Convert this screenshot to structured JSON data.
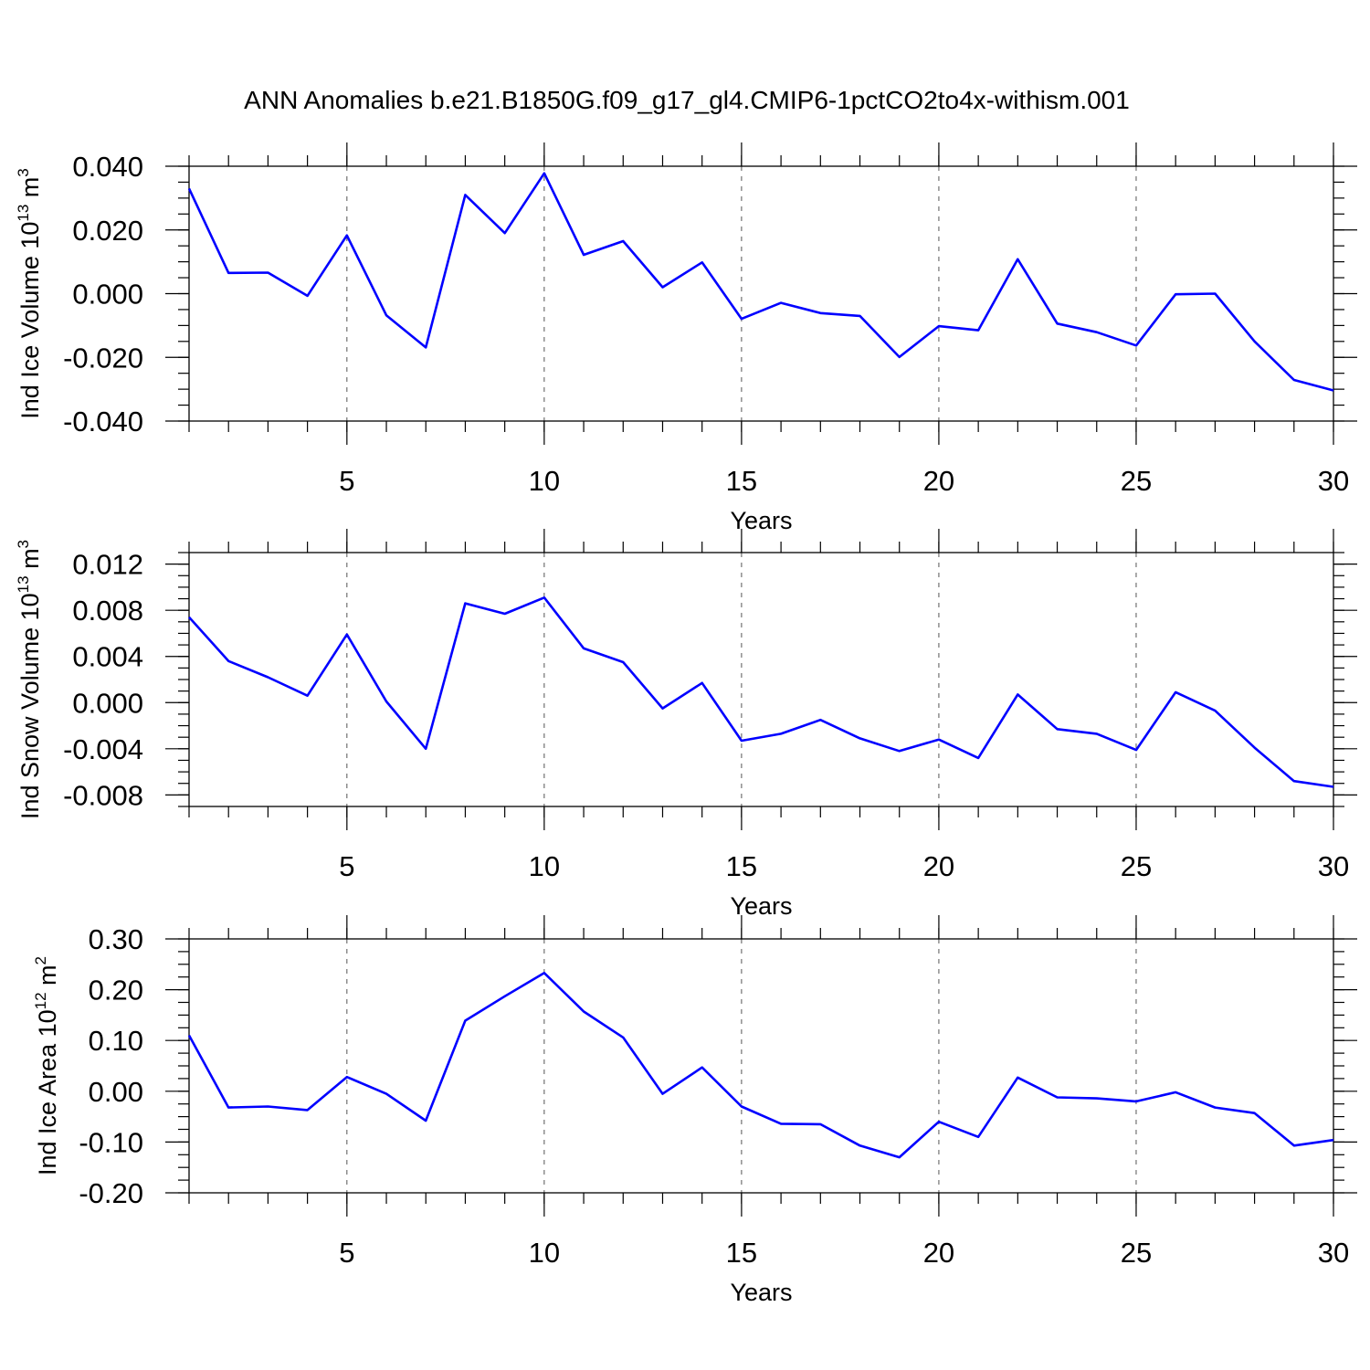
{
  "title": "ANN Anomalies b.e21.B1850G.f09_g17_gl4.CMIP6-1pctCO2to4x-withism.001",
  "line_color": "#0000ff",
  "chart_data": [
    {
      "type": "line",
      "ylabel_main": "Ind Ice Volume 10",
      "ylabel_exp": "13",
      "ylabel_unit": " m",
      "ylabel_unit_exp": "3",
      "xlabel": "Years",
      "xlim": [
        1,
        30
      ],
      "ylim": [
        -0.04,
        0.04
      ],
      "xticks": [
        5,
        10,
        15,
        20,
        25,
        30
      ],
      "yticks": [
        0.04,
        0.02,
        0.0,
        -0.02,
        -0.04
      ],
      "ytick_labels": [
        "0.040",
        "0.020",
        "0.000",
        "-0.020",
        "-0.040"
      ],
      "x": [
        1,
        2,
        3,
        4,
        5,
        6,
        7,
        8,
        9,
        10,
        11,
        12,
        13,
        14,
        15,
        16,
        17,
        18,
        19,
        20,
        21,
        22,
        23,
        24,
        25,
        26,
        27,
        28,
        29,
        30
      ],
      "values": [
        0.033,
        0.0065,
        0.0066,
        -0.0007,
        0.0183,
        -0.0068,
        -0.0169,
        0.031,
        0.019,
        0.0378,
        0.0122,
        0.0165,
        0.002,
        0.0098,
        -0.0079,
        -0.0029,
        -0.0061,
        -0.007,
        -0.0199,
        -0.0102,
        -0.0115,
        0.0108,
        -0.0094,
        -0.0121,
        -0.0163,
        -0.0002,
        0.0,
        -0.015,
        -0.0271,
        -0.0304
      ]
    },
    {
      "type": "line",
      "ylabel_main": "Ind Snow Volume 10",
      "ylabel_exp": "13",
      "ylabel_unit": " m",
      "ylabel_unit_exp": "3",
      "xlabel": "Years",
      "xlim": [
        1,
        30
      ],
      "ylim": [
        -0.009,
        0.013
      ],
      "xticks": [
        5,
        10,
        15,
        20,
        25,
        30
      ],
      "yticks": [
        0.012,
        0.008,
        0.004,
        0.0,
        -0.004,
        -0.008
      ],
      "ytick_labels": [
        "0.012",
        "0.008",
        "0.004",
        "0.000",
        "-0.004",
        "-0.008"
      ],
      "x": [
        1,
        2,
        3,
        4,
        5,
        6,
        7,
        8,
        9,
        10,
        11,
        12,
        13,
        14,
        15,
        16,
        17,
        18,
        19,
        20,
        21,
        22,
        23,
        24,
        25,
        26,
        27,
        28,
        29,
        30
      ],
      "values": [
        0.0074,
        0.0036,
        0.0022,
        0.0006,
        0.0059,
        0.0001,
        -0.004,
        0.0086,
        0.0077,
        0.0091,
        0.0047,
        0.0035,
        -0.0005,
        0.0017,
        -0.0033,
        -0.0027,
        -0.0015,
        -0.0031,
        -0.0042,
        -0.0032,
        -0.0048,
        0.0007,
        -0.0023,
        -0.0027,
        -0.0041,
        0.0009,
        -0.0007,
        -0.0039,
        -0.0068,
        -0.0073
      ]
    },
    {
      "type": "line",
      "ylabel_main": "Ind Ice Area 10",
      "ylabel_exp": "12",
      "ylabel_unit": " m",
      "ylabel_unit_exp": "2",
      "xlabel": "Years",
      "xlim": [
        1,
        30
      ],
      "ylim": [
        -0.2,
        0.3
      ],
      "xticks": [
        5,
        10,
        15,
        20,
        25,
        30
      ],
      "yticks": [
        0.3,
        0.2,
        0.1,
        0.0,
        -0.1,
        -0.2
      ],
      "ytick_labels": [
        "0.30",
        "0.20",
        "0.10",
        "0.00",
        "-0.10",
        "-0.20"
      ],
      "x": [
        1,
        2,
        3,
        4,
        5,
        6,
        7,
        8,
        9,
        10,
        11,
        12,
        13,
        14,
        15,
        16,
        17,
        18,
        19,
        20,
        21,
        22,
        23,
        24,
        25,
        26,
        27,
        28,
        29,
        30
      ],
      "values": [
        0.11,
        -0.032,
        -0.03,
        -0.037,
        0.028,
        -0.005,
        -0.058,
        0.139,
        0.187,
        0.233,
        0.157,
        0.106,
        -0.005,
        0.047,
        -0.03,
        -0.064,
        -0.065,
        -0.107,
        -0.13,
        -0.06,
        -0.09,
        0.027,
        -0.012,
        -0.014,
        -0.02,
        -0.002,
        -0.032,
        -0.043,
        -0.107,
        -0.096
      ]
    }
  ]
}
